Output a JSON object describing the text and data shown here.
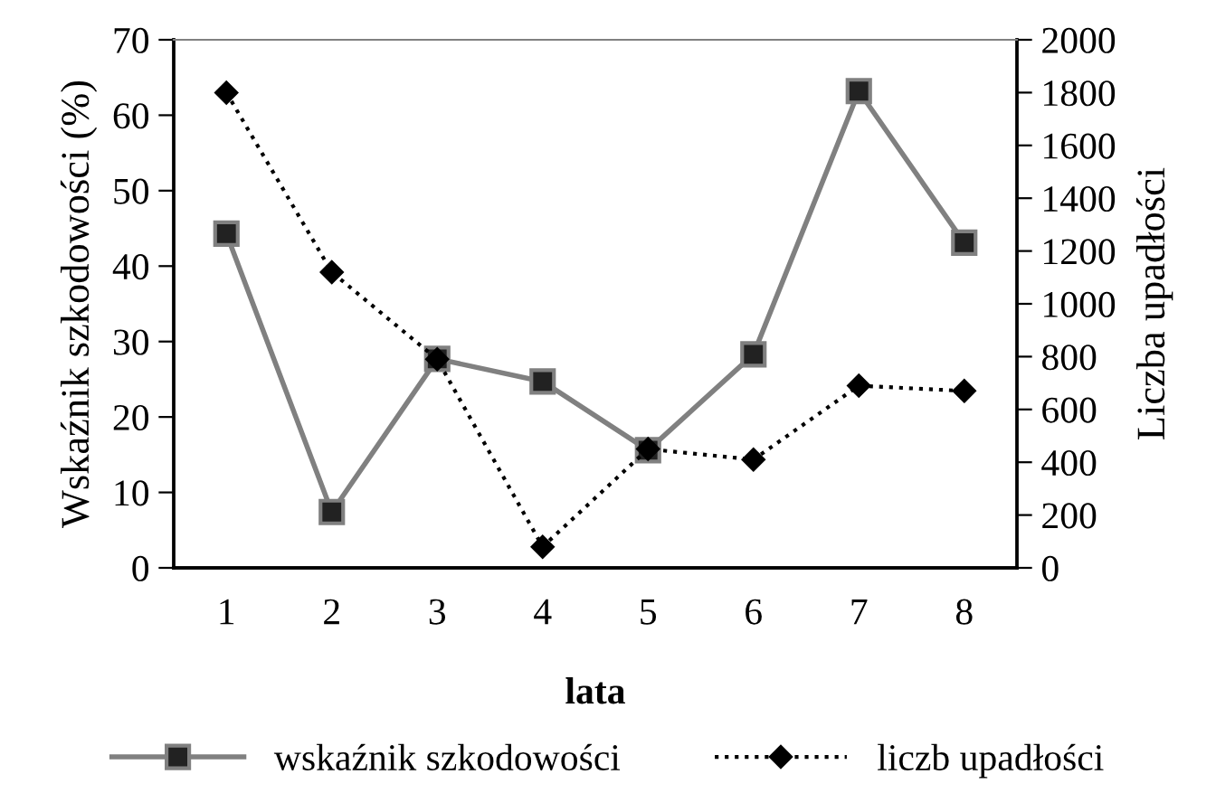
{
  "chart_data": {
    "type": "line",
    "xlabel": "lata",
    "ylabel": "Wskaźnik szkodowości (%)",
    "y2label": "Liczba upadłości",
    "categories": [
      "1",
      "2",
      "3",
      "4",
      "5",
      "6",
      "7",
      "8"
    ],
    "series": [
      {
        "name": "wskaźnik szkodowości",
        "color": "#808080",
        "marker": "square",
        "line_style": "solid",
        "values": [
          44.3,
          7.4,
          27.7,
          24.7,
          15.6,
          28.3,
          63.2,
          43.1
        ]
      },
      {
        "name": "liczb upadłości",
        "color": "#000000",
        "marker": "diamond",
        "line_style": "dotted",
        "axis": "y2",
        "values": [
          1800,
          1120,
          790,
          80,
          450,
          410,
          690,
          670
        ]
      }
    ],
    "ylim": [
      0,
      70
    ],
    "yticks": [
      0,
      10,
      20,
      30,
      40,
      50,
      60,
      70
    ],
    "y2lim": [
      0,
      2000
    ],
    "y2ticks": [
      0,
      200,
      400,
      600,
      800,
      1000,
      1200,
      1400,
      1600,
      1800,
      2000
    ],
    "grid": false,
    "legend": "bottom"
  }
}
